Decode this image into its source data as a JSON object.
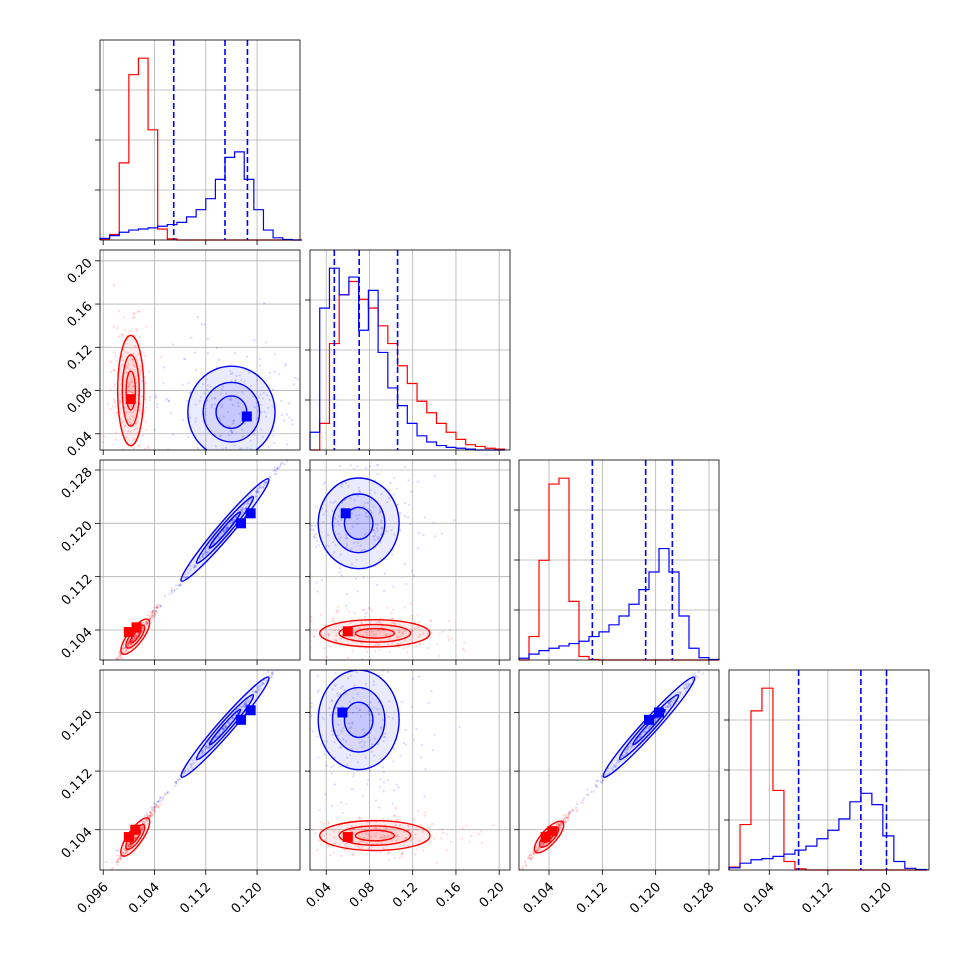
{
  "chart_data": {
    "type": "corner",
    "title": "",
    "series": [
      {
        "name": "",
        "color": "#ff0000"
      },
      {
        "name": "",
        "color": "#0000ff"
      }
    ],
    "parameters": [
      {
        "range": [
          0.0955,
          0.1267
        ],
        "ticks": [
          0.096,
          0.104,
          0.112,
          0.12
        ],
        "tick_labels": [
          "0.096",
          "0.104",
          "0.112",
          "0.120"
        ]
      },
      {
        "range": [
          0.025,
          0.21
        ],
        "ticks": [
          0.04,
          0.08,
          0.12,
          0.16,
          0.2
        ],
        "tick_labels": [
          "0.04",
          "0.08",
          "0.12",
          "0.16",
          "0.20"
        ]
      },
      {
        "range": [
          0.0995,
          0.1295
        ],
        "ticks": [
          0.104,
          0.112,
          0.12,
          0.128
        ],
        "tick_labels": [
          "0.104",
          "0.112",
          "0.120",
          "0.128"
        ]
      },
      {
        "range": [
          0.0985,
          0.1258
        ],
        "ticks": [
          0.104,
          0.112,
          0.12
        ],
        "tick_labels": [
          "0.104",
          "0.112",
          "0.120"
        ]
      }
    ],
    "histograms": [
      {
        "param": 0,
        "quantiles_blue": [
          0.107,
          0.115,
          0.1185
        ],
        "red": {
          "edges": [
            0.0955,
            0.097,
            0.0985,
            0.1,
            0.1015,
            0.103,
            0.1045,
            0.106,
            0.1075,
            0.109,
            0.1105,
            0.112,
            0.1135,
            0.115,
            0.1165,
            0.118,
            0.1195,
            0.121,
            0.1225,
            0.124,
            0.1255,
            0.127
          ],
          "counts": [
            2,
            10,
            140,
            300,
            330,
            200,
            20,
            2,
            0,
            0,
            0,
            0,
            0,
            0,
            0,
            0,
            0,
            0,
            0,
            0,
            0
          ]
        },
        "blue": {
          "edges": [
            0.0955,
            0.097,
            0.0985,
            0.1,
            0.1015,
            0.103,
            0.1045,
            0.106,
            0.1075,
            0.109,
            0.1105,
            0.112,
            0.1135,
            0.115,
            0.1165,
            0.118,
            0.1195,
            0.121,
            0.1225,
            0.124,
            0.1255,
            0.127
          ],
          "counts": [
            3,
            8,
            14,
            18,
            20,
            22,
            25,
            28,
            32,
            42,
            55,
            75,
            110,
            150,
            160,
            110,
            55,
            18,
            4,
            1,
            0
          ]
        }
      },
      {
        "param": 1,
        "quantiles_blue": [
          0.0475,
          0.0705,
          0.106
        ],
        "red": {
          "edges": [
            0.025,
            0.034,
            0.043,
            0.052,
            0.061,
            0.07,
            0.079,
            0.088,
            0.097,
            0.106,
            0.115,
            0.124,
            0.133,
            0.142,
            0.151,
            0.16,
            0.169,
            0.178,
            0.187,
            0.196,
            0.205
          ],
          "counts": [
            0,
            30,
            120,
            175,
            190,
            170,
            160,
            140,
            120,
            95,
            75,
            55,
            42,
            30,
            20,
            12,
            6,
            4,
            2,
            1
          ]
        },
        "blue": {
          "edges": [
            0.025,
            0.034,
            0.043,
            0.052,
            0.061,
            0.07,
            0.079,
            0.088,
            0.097,
            0.106,
            0.115,
            0.124,
            0.133,
            0.142,
            0.151,
            0.16,
            0.169,
            0.178,
            0.187,
            0.196,
            0.205
          ],
          "counts": [
            20,
            160,
            205,
            175,
            195,
            135,
            180,
            110,
            70,
            50,
            30,
            16,
            9,
            5,
            3,
            2,
            1,
            0,
            0,
            0
          ]
        }
      },
      {
        "param": 2,
        "quantiles_blue": [
          0.1105,
          0.1185,
          0.1225
        ],
        "red": {
          "edges": [
            0.0995,
            0.101,
            0.1025,
            0.104,
            0.1055,
            0.107,
            0.1085,
            0.11,
            0.1115,
            0.113,
            0.1145,
            0.116,
            0.1175,
            0.119,
            0.1205,
            0.122,
            0.1235,
            0.125,
            0.1265,
            0.128,
            0.1295
          ],
          "counts": [
            0,
            40,
            170,
            300,
            310,
            100,
            6,
            1,
            0,
            0,
            0,
            0,
            0,
            0,
            0,
            0,
            0,
            0,
            0,
            0
          ]
        },
        "blue": {
          "edges": [
            0.0995,
            0.101,
            0.1025,
            0.104,
            0.1055,
            0.107,
            0.1085,
            0.11,
            0.1115,
            0.113,
            0.1145,
            0.116,
            0.1175,
            0.119,
            0.1205,
            0.122,
            0.1235,
            0.125,
            0.1265,
            0.128,
            0.1295
          ],
          "counts": [
            3,
            10,
            16,
            20,
            24,
            28,
            32,
            40,
            48,
            60,
            75,
            95,
            120,
            150,
            190,
            150,
            75,
            20,
            4,
            1
          ]
        }
      },
      {
        "param": 3,
        "quantiles_blue": [
          0.108,
          0.1165,
          0.12
        ],
        "red": {
          "edges": [
            0.0985,
            0.1,
            0.1015,
            0.103,
            0.1045,
            0.106,
            0.1075,
            0.109,
            0.1105,
            0.112,
            0.1135,
            0.115,
            0.1165,
            0.118,
            0.1195,
            0.121,
            0.1225,
            0.124,
            0.1255
          ],
          "counts": [
            5,
            80,
            280,
            320,
            140,
            15,
            2,
            0,
            0,
            0,
            0,
            0,
            0,
            0,
            0,
            0,
            0,
            0
          ]
        },
        "blue": {
          "edges": [
            0.0985,
            0.1,
            0.1015,
            0.103,
            0.1045,
            0.106,
            0.1075,
            0.109,
            0.1105,
            0.112,
            0.1135,
            0.115,
            0.1165,
            0.118,
            0.1195,
            0.121,
            0.1225,
            0.124,
            0.1255
          ],
          "counts": [
            4,
            12,
            18,
            20,
            24,
            28,
            35,
            42,
            55,
            70,
            90,
            120,
            135,
            115,
            60,
            15,
            3,
            1
          ]
        }
      }
    ],
    "scatter_panels": [
      {
        "x_param": 0,
        "y_param": 1,
        "red": {
          "center": [
            0.1003,
            0.08
          ],
          "spread": [
            0.0012,
            0.03
          ],
          "peaks": [
            [
              0.1003,
              0.072
            ]
          ]
        },
        "blue": {
          "center": [
            0.116,
            0.06
          ],
          "spread": [
            0.004,
            0.025
          ],
          "peaks": [
            [
              0.1184,
              0.056
            ]
          ]
        }
      },
      {
        "x_param": 0,
        "y_param": 2,
        "red": {
          "center": [
            0.101,
            0.103
          ],
          "spread": [
            0.0012,
            0.0015
          ],
          "peaks": [
            [
              0.1,
              0.1037
            ],
            [
              0.1012,
              0.1044
            ]
          ]
        },
        "blue": {
          "center": [
            0.115,
            0.119
          ],
          "spread": [
            0.004,
            0.0045
          ],
          "peaks": [
            [
              0.1175,
              0.12
            ],
            [
              0.119,
              0.1215
            ]
          ]
        }
      },
      {
        "x_param": 1,
        "y_param": 2,
        "red": {
          "center": [
            0.085,
            0.1035
          ],
          "spread": [
            0.03,
            0.0012
          ],
          "peaks": [
            [
              0.06,
              0.1038
            ]
          ]
        },
        "blue": {
          "center": [
            0.07,
            0.12
          ],
          "spread": [
            0.022,
            0.004
          ],
          "peaks": [
            [
              0.058,
              0.1215
            ]
          ]
        }
      },
      {
        "x_param": 0,
        "y_param": 3,
        "red": {
          "center": [
            0.101,
            0.103
          ],
          "spread": [
            0.0012,
            0.0015
          ],
          "peaks": [
            [
              0.1,
              0.103
            ],
            [
              0.101,
              0.104
            ]
          ]
        },
        "blue": {
          "center": [
            0.115,
            0.118
          ],
          "spread": [
            0.004,
            0.004
          ],
          "peaks": [
            [
              0.1175,
              0.119
            ],
            [
              0.119,
              0.1203
            ]
          ]
        }
      },
      {
        "x_param": 1,
        "y_param": 3,
        "red": {
          "center": [
            0.085,
            0.1032
          ],
          "spread": [
            0.03,
            0.0012
          ],
          "peaks": [
            [
              0.06,
              0.103
            ]
          ]
        },
        "blue": {
          "center": [
            0.07,
            0.119
          ],
          "spread": [
            0.022,
            0.004
          ],
          "peaks": [
            [
              0.055,
              0.12
            ]
          ]
        }
      },
      {
        "x_param": 2,
        "y_param": 3,
        "red": {
          "center": [
            0.104,
            0.103
          ],
          "spread": [
            0.0012,
            0.0012
          ],
          "peaks": [
            [
              0.1035,
              0.103
            ],
            [
              0.1045,
              0.1038
            ]
          ]
        },
        "blue": {
          "center": [
            0.119,
            0.118
          ],
          "spread": [
            0.004,
            0.004
          ],
          "peaks": [
            [
              0.119,
              0.119
            ],
            [
              0.1205,
              0.12
            ]
          ]
        }
      }
    ],
    "grid": true
  }
}
